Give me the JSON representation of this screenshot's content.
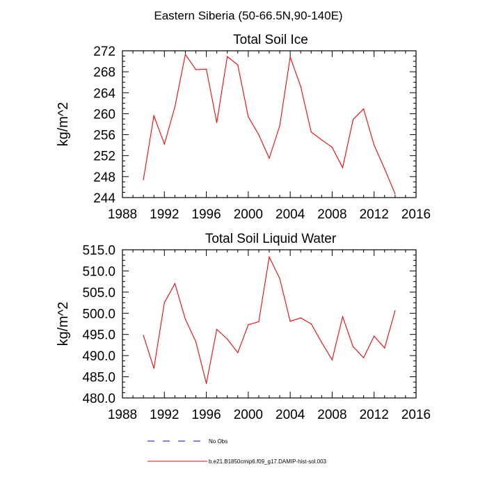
{
  "figure": {
    "title": "Eastern Siberia (50-66.5N,90-140E)"
  },
  "legend": {
    "items": [
      {
        "label": "No Obs",
        "color": "#0000ff",
        "style": "dashed"
      },
      {
        "label": "b.e21.B1850cmip6.f09_g17.DAMIP-hist-sol.003",
        "color": "#ff0000",
        "style": "solid"
      }
    ]
  },
  "chart_data": [
    {
      "type": "line",
      "title": "Total Soil Ice",
      "xlabel": "",
      "ylabel": "kg/m^2",
      "xlim": [
        1988,
        2016
      ],
      "ylim": [
        244,
        272
      ],
      "xticks": [
        1988,
        1992,
        1996,
        2000,
        2004,
        2008,
        2012,
        2016
      ],
      "yticks": [
        244,
        248,
        252,
        256,
        260,
        264,
        268,
        272
      ],
      "ytick_labels": [
        "244",
        "248",
        "252",
        "256",
        "260",
        "264",
        "268",
        "272"
      ],
      "grid": false,
      "series": [
        {
          "name": "b.e21.B1850cmip6.f09_g17.DAMIP-hist-sol.003",
          "color": "#ff0000",
          "x": [
            1990,
            1991,
            1992,
            1993,
            1994,
            1995,
            1996,
            1997,
            1998,
            1999,
            2000,
            2001,
            2002,
            2003,
            2004,
            2005,
            2006,
            2007,
            2008,
            2009,
            2010,
            2011,
            2012,
            2013,
            2014
          ],
          "y": [
            247.4,
            259.6,
            254.2,
            261.3,
            271.3,
            268.4,
            268.5,
            258.3,
            270.9,
            269.3,
            259.4,
            256.0,
            251.5,
            257.7,
            270.8,
            265.2,
            256.5,
            255.0,
            253.6,
            249.7,
            258.9,
            260.9,
            254.0,
            249.5,
            244.7
          ]
        }
      ]
    },
    {
      "type": "line",
      "title": "Total Soil Liquid Water",
      "xlabel": "",
      "ylabel": "kg/m^2",
      "xlim": [
        1988,
        2016
      ],
      "ylim": [
        480,
        515
      ],
      "xticks": [
        1988,
        1992,
        1996,
        2000,
        2004,
        2008,
        2012,
        2016
      ],
      "yticks": [
        480,
        485,
        490,
        495,
        500,
        505,
        510,
        515
      ],
      "ytick_labels": [
        "480.0",
        "485.0",
        "490.0",
        "495.0",
        "500.0",
        "505.0",
        "510.0",
        "515.0"
      ],
      "grid": false,
      "series": [
        {
          "name": "b.e21.B1850cmip6.f09_g17.DAMIP-hist-sol.003",
          "color": "#ff0000",
          "x": [
            1990,
            1991,
            1992,
            1993,
            1994,
            1995,
            1996,
            1997,
            1998,
            1999,
            2000,
            2001,
            2002,
            2003,
            2004,
            2005,
            2006,
            2007,
            2008,
            2009,
            2010,
            2011,
            2012,
            2013,
            2014
          ],
          "y": [
            494.8,
            487.0,
            502.5,
            507.0,
            498.6,
            493.3,
            483.4,
            496.2,
            493.9,
            490.7,
            497.3,
            498.0,
            513.3,
            508.2,
            498.1,
            498.9,
            497.5,
            493.1,
            489.0,
            499.2,
            492.1,
            489.5,
            494.6,
            491.8,
            500.6
          ]
        }
      ]
    }
  ]
}
